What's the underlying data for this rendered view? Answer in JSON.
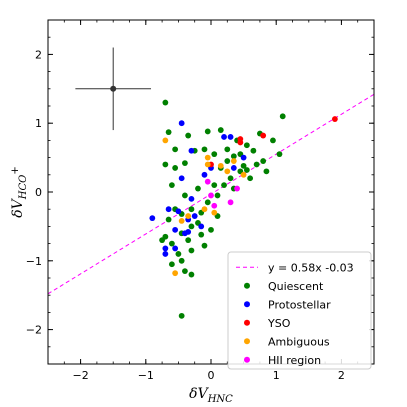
{
  "chart_data": {
    "type": "scatter",
    "title": "",
    "xlabel": {
      "base": "δV",
      "sub": "HNC"
    },
    "ylabel": {
      "base": "δV",
      "sub": "HCO",
      "sup": "+"
    },
    "xlim": [
      -2.5,
      2.5
    ],
    "ylim": [
      -2.5,
      2.5
    ],
    "xticks": [
      -2,
      -1,
      0,
      1,
      2
    ],
    "yticks": [
      -2,
      -1,
      0,
      1,
      2
    ],
    "xtick_labels": [
      "−2",
      "−1",
      "0",
      "1",
      "2"
    ],
    "ytick_labels": [
      "−2",
      "−1",
      "0",
      "1",
      "2"
    ],
    "grid": false,
    "legend_position": "lower-right",
    "fit": {
      "label": "y = 0.58x -0.03",
      "slope": 0.58,
      "intercept": -0.03,
      "color": "#ff00ff",
      "style": "dashed"
    },
    "error_bar": {
      "x": -1.5,
      "y": 1.5,
      "xerr": 0.58,
      "yerr": 0.6,
      "color": "#333333"
    },
    "series": [
      {
        "name": "Quiescent",
        "color": "#008000",
        "points": [
          [
            -0.7,
            1.3
          ],
          [
            -0.65,
            0.87
          ],
          [
            -0.55,
            0.62
          ],
          [
            -0.35,
            0.82
          ],
          [
            -0.05,
            0.88
          ],
          [
            0.15,
            0.9
          ],
          [
            0.4,
            0.75
          ],
          [
            0.55,
            0.68
          ],
          [
            0.75,
            0.85
          ],
          [
            0.95,
            0.75
          ],
          [
            1.1,
            1.1
          ],
          [
            1.05,
            0.55
          ],
          [
            0.8,
            0.45
          ],
          [
            0.7,
            0.4
          ],
          [
            0.5,
            0.38
          ],
          [
            0.35,
            0.52
          ],
          [
            0.25,
            0.45
          ],
          [
            0.15,
            0.35
          ],
          [
            0.05,
            0.55
          ],
          [
            -0.1,
            0.62
          ],
          [
            -0.25,
            0.6
          ],
          [
            -0.4,
            0.42
          ],
          [
            -0.55,
            0.35
          ],
          [
            -0.7,
            0.4
          ],
          [
            -0.6,
            0.1
          ],
          [
            -0.4,
            -0.05
          ],
          [
            -0.2,
            0.05
          ],
          [
            -0.05,
            -0.15
          ],
          [
            0.1,
            -0.05
          ],
          [
            0.2,
            0.1
          ],
          [
            0.3,
            0.2
          ],
          [
            0.45,
            0.3
          ],
          [
            0.55,
            0.32
          ],
          [
            0.6,
            0.2
          ],
          [
            0.35,
            0.05
          ],
          [
            0.05,
            0.1
          ],
          [
            -0.15,
            -0.3
          ],
          [
            -0.3,
            -0.25
          ],
          [
            -0.45,
            -0.32
          ],
          [
            -0.55,
            -0.25
          ],
          [
            -0.65,
            -0.4
          ],
          [
            -0.7,
            -0.65
          ],
          [
            -0.6,
            -0.75
          ],
          [
            -0.45,
            -0.6
          ],
          [
            -0.3,
            -0.5
          ],
          [
            -0.15,
            -0.62
          ],
          [
            0.0,
            -0.55
          ],
          [
            0.1,
            -0.35
          ],
          [
            -0.2,
            -0.45
          ],
          [
            -0.35,
            -0.7
          ],
          [
            -0.5,
            -0.9
          ],
          [
            -0.6,
            -1.05
          ],
          [
            -0.45,
            -1.0
          ],
          [
            -0.3,
            -0.85
          ],
          [
            -0.1,
            -0.78
          ],
          [
            -0.4,
            -1.15
          ],
          [
            -0.3,
            -1.2
          ],
          [
            -0.45,
            -1.8
          ],
          [
            -0.75,
            -0.7
          ],
          [
            0.25,
            0.62
          ],
          [
            0.45,
            0.55
          ],
          [
            0.65,
            0.6
          ],
          [
            0.85,
            0.3
          ]
        ]
      },
      {
        "name": "Protostellar",
        "color": "#0000ff",
        "points": [
          [
            -0.45,
            1.0
          ],
          [
            -0.3,
            0.6
          ],
          [
            -0.45,
            0.2
          ],
          [
            0.3,
            0.8
          ],
          [
            0.5,
            0.5
          ],
          [
            0.35,
            0.35
          ],
          [
            -0.9,
            -0.38
          ],
          [
            -0.65,
            -0.25
          ],
          [
            -0.5,
            -0.28
          ],
          [
            -0.55,
            -0.55
          ],
          [
            -0.35,
            -0.4
          ],
          [
            -0.25,
            -0.35
          ],
          [
            -0.7,
            -0.82
          ],
          [
            -0.55,
            -0.82
          ],
          [
            -0.35,
            -0.58
          ],
          [
            -0.15,
            -0.5
          ],
          [
            -0.7,
            -0.9
          ],
          [
            -0.1,
            0.25
          ],
          [
            0.0,
            0.35
          ],
          [
            0.2,
            0.8
          ],
          [
            -0.3,
            -0.1
          ],
          [
            -0.4,
            -0.6
          ]
        ]
      },
      {
        "name": "YSO",
        "color": "#ff0000",
        "points": [
          [
            1.9,
            1.06
          ],
          [
            0.45,
            0.77
          ],
          [
            0.45,
            0.72
          ],
          [
            0.8,
            0.82
          ],
          [
            0.0,
            0.4
          ]
        ]
      },
      {
        "name": "Ambiguous",
        "color": "#ffa500",
        "points": [
          [
            -0.7,
            0.75
          ],
          [
            -0.05,
            0.5
          ],
          [
            -0.05,
            0.4
          ],
          [
            0.25,
            0.3
          ],
          [
            0.35,
            0.45
          ],
          [
            0.5,
            0.25
          ],
          [
            -0.45,
            -0.42
          ],
          [
            -0.35,
            -0.35
          ],
          [
            -0.1,
            -0.25
          ],
          [
            -0.55,
            -1.18
          ],
          [
            0.05,
            -0.3
          ],
          [
            0.15,
            0.38
          ]
        ]
      },
      {
        "name": "HII region",
        "color": "#ff00ff",
        "points": [
          [
            0.05,
            -0.2
          ],
          [
            0.4,
            0.05
          ],
          [
            0.3,
            -0.15
          ],
          [
            -0.05,
            0.15
          ],
          [
            0.0,
            -0.05
          ]
        ]
      }
    ]
  }
}
